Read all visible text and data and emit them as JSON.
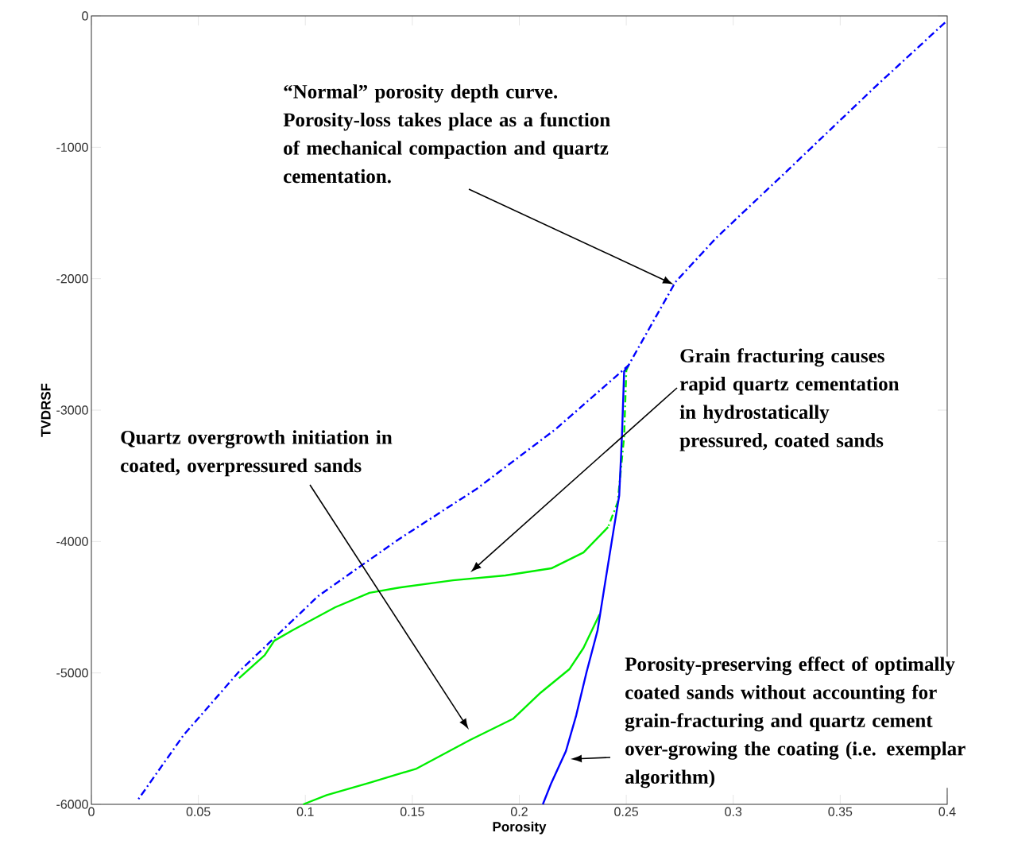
{
  "chart_data": {
    "type": "line",
    "xlabel": "Porosity",
    "ylabel": "TVDRSF",
    "xlim": [
      0,
      0.4
    ],
    "ylim": [
      -6000,
      0
    ],
    "xticks": [
      0,
      0.05,
      0.1,
      0.15,
      0.2,
      0.25,
      0.3,
      0.35,
      0.4
    ],
    "yticks": [
      -6000,
      -5000,
      -4000,
      -3000,
      -2000,
      -1000,
      0
    ],
    "grid": false,
    "marker": "none",
    "series": [
      {
        "color": "#00ee00",
        "line_style": "dashed",
        "x": [
          0.251,
          0.25,
          0.249,
          0.246,
          0.2415
        ],
        "values": [
          -2660,
          -2700,
          -3200,
          -3700,
          -3890
        ]
      },
      {
        "color": "#0000ff",
        "line_style": "dashed",
        "x": [
          0.399,
          0.366,
          0.329,
          0.292,
          0.273,
          0.251,
          0.217,
          0.18,
          0.143,
          0.106,
          0.069,
          0.043,
          0.022
        ],
        "values": [
          -50,
          -545,
          -1120,
          -1690,
          -2025,
          -2660,
          -3145,
          -3600,
          -3990,
          -4415,
          -4990,
          -5475,
          -5960
        ]
      },
      {
        "color": "#00ee00",
        "line_style": "solid",
        "x": [
          0.2415,
          0.23,
          0.215,
          0.1935,
          0.169,
          0.144,
          0.13,
          0.114,
          0.094,
          0.0855,
          0.081,
          0.069
        ],
        "values": [
          -3890,
          -4083,
          -4204,
          -4258,
          -4295,
          -4350,
          -4390,
          -4500,
          -4675,
          -4755,
          -4865,
          -5040
        ]
      },
      {
        "color": "#00ee00",
        "line_style": "solid",
        "x": [
          0.2375,
          0.23,
          0.2235,
          0.21,
          0.197,
          0.177,
          0.152,
          0.13,
          0.11,
          0.099
        ],
        "values": [
          -4555,
          -4810,
          -4970,
          -5150,
          -5350,
          -5510,
          -5728,
          -5836,
          -5930,
          -6000
        ]
      },
      {
        "color": "#0000ff",
        "line_style": "solid",
        "x": [
          0.251,
          0.249,
          0.248,
          0.2467,
          0.244,
          0.24,
          0.2366,
          0.2314,
          0.2266,
          0.2218,
          0.215,
          0.211
        ],
        "values": [
          -2660,
          -2705,
          -3190,
          -3650,
          -3920,
          -4325,
          -4675,
          -4996,
          -5323,
          -5595,
          -5836,
          -6000
        ]
      }
    ],
    "annotations": [
      "“Normal” porosity depth curve. Porosity-loss takes place as a function of mechanical compaction and quartz cementation.",
      "Grain fracturing causes rapid quartz cementation in hydrostatically pressured, coated sands",
      "Quartz overgrowth initiation in coated, overpressured sands",
      "Porosity-preserving effect of optimally coated sands without accounting for grain-fracturing and quartz cement over-growing the coating (i.e. exemplar algorithm)"
    ]
  }
}
